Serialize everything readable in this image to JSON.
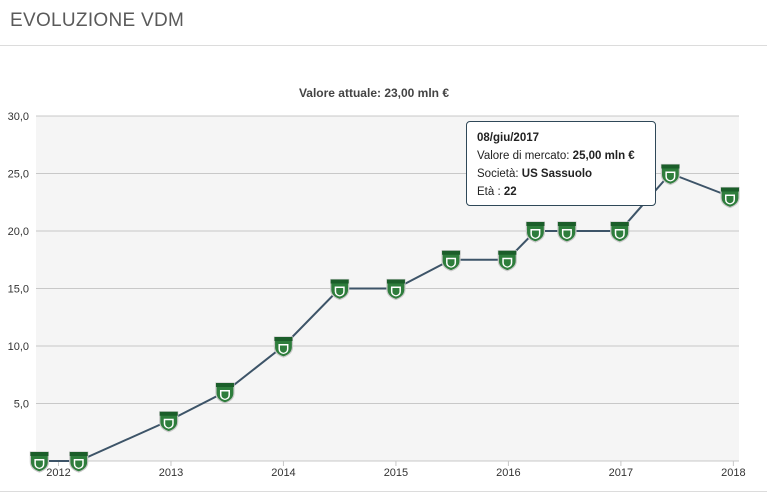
{
  "header": {
    "title": "EVOLUZIONE VDM"
  },
  "chart_data": {
    "type": "line",
    "title": "Valore attuale: 23,00 mln €",
    "xlabel": "",
    "ylabel": "",
    "ylim": [
      0,
      30
    ],
    "y_ticks": [
      "5,0",
      "10,0",
      "15,0",
      "20,0",
      "25,0",
      "30,0"
    ],
    "y_tick_values": [
      5,
      10,
      15,
      20,
      25,
      30
    ],
    "xlim": [
      2011.8,
      2018.05
    ],
    "x_ticks": [
      "2012",
      "2013",
      "2014",
      "2015",
      "2016",
      "2017",
      "2018"
    ],
    "x_tick_values": [
      2012,
      2013,
      2014,
      2015,
      2016,
      2017,
      2018
    ],
    "grid": true,
    "series": [
      {
        "color": "#3d5468",
        "points": [
          {
            "x": 2011.83,
            "y": 0.0
          },
          {
            "x": 2012.18,
            "y": 0.0
          },
          {
            "x": 2012.98,
            "y": 3.5
          },
          {
            "x": 2013.48,
            "y": 6.0
          },
          {
            "x": 2014.0,
            "y": 10.0
          },
          {
            "x": 2014.5,
            "y": 15.0
          },
          {
            "x": 2015.0,
            "y": 15.0
          },
          {
            "x": 2015.49,
            "y": 17.5
          },
          {
            "x": 2015.99,
            "y": 17.5
          },
          {
            "x": 2016.24,
            "y": 20.0
          },
          {
            "x": 2016.52,
            "y": 20.0
          },
          {
            "x": 2016.99,
            "y": 20.0
          },
          {
            "x": 2017.44,
            "y": 25.0
          },
          {
            "x": 2017.97,
            "y": 23.0
          }
        ]
      }
    ],
    "marker": "club-crest",
    "marker_color": "#2e7d3c"
  },
  "tooltip": {
    "date": "08/giu/2017",
    "value_label": "Valore di mercato:",
    "value": "25,00 mln €",
    "club_label": "Società:",
    "club": "US Sassuolo",
    "age_label": "Età :",
    "age": "22"
  }
}
